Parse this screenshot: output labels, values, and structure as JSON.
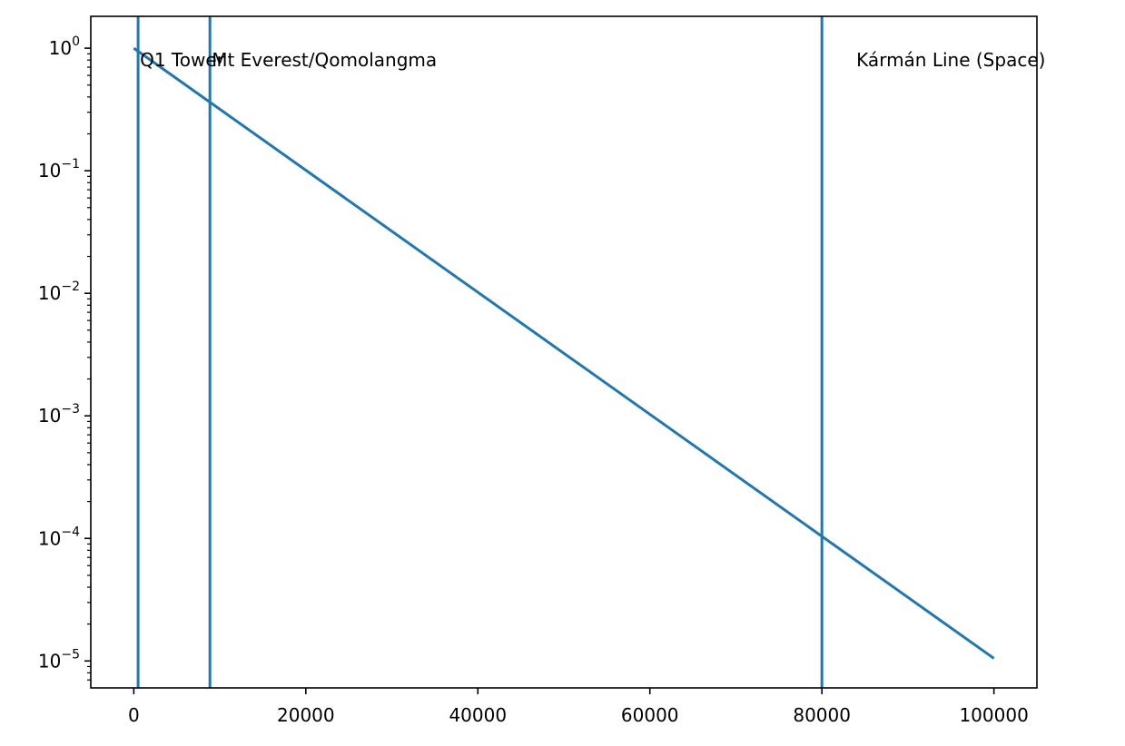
{
  "chart_data": {
    "type": "line",
    "xlim": [
      -5000,
      105000
    ],
    "ylim_log10": [
      -5.22,
      0.26
    ],
    "yscale": "log",
    "grid": false,
    "series": [
      {
        "x": [
          0,
          100000
        ],
        "y": [
          1.0,
          1.05e-05
        ]
      }
    ],
    "vlines": [
      {
        "x": 500,
        "label": "Q1 Tower"
      },
      {
        "x": 8849,
        "label": "Mt Everest/Qomolangma"
      },
      {
        "x": 80000,
        "label": "Kármán Line (Space)"
      }
    ],
    "x_ticks": [
      {
        "value": 0,
        "label": "0"
      },
      {
        "value": 20000,
        "label": "20000"
      },
      {
        "value": 40000,
        "label": "40000"
      },
      {
        "value": 60000,
        "label": "60000"
      },
      {
        "value": 80000,
        "label": "80000"
      },
      {
        "value": 100000,
        "label": "100000"
      }
    ],
    "y_ticks": [
      {
        "exp": 0,
        "base": "10",
        "sup": "0"
      },
      {
        "exp": -1,
        "base": "10",
        "sup": "−1"
      },
      {
        "exp": -2,
        "base": "10",
        "sup": "−2"
      },
      {
        "exp": -3,
        "base": "10",
        "sup": "−3"
      },
      {
        "exp": -4,
        "base": "10",
        "sup": "−4"
      },
      {
        "exp": -5,
        "base": "10",
        "sup": "−5"
      }
    ],
    "colors": {
      "line": "#1f77b4",
      "axis": "#000000"
    }
  }
}
